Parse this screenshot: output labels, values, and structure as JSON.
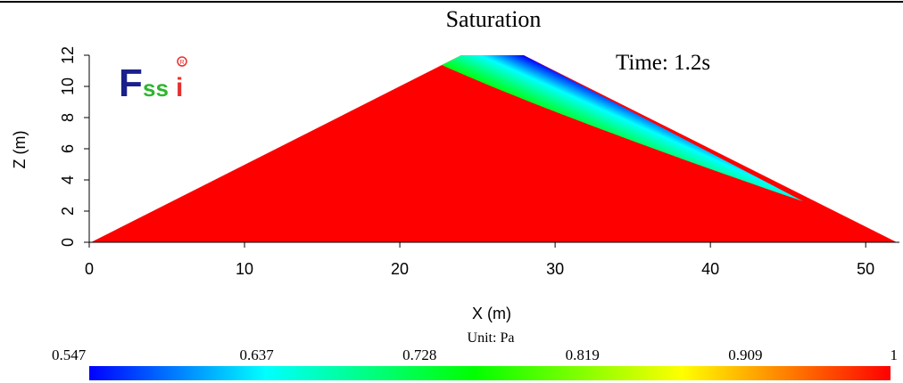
{
  "chart_data": {
    "type": "heatmap",
    "title": "Saturation",
    "annotation": "Time: 1.2s",
    "logo_text": "Fssi",
    "xlabel": "X (m)",
    "ylabel": "Z (m)",
    "xlim": [
      0,
      52
    ],
    "ylim": [
      0,
      12
    ],
    "x_ticks": [
      "0",
      "10",
      "20",
      "30",
      "40",
      "50"
    ],
    "y_ticks": [
      "0",
      "2",
      "4",
      "6",
      "8",
      "10",
      "12"
    ],
    "domain_polygon": [
      [
        0,
        0
      ],
      [
        24,
        12
      ],
      [
        28,
        12
      ],
      [
        52,
        0
      ]
    ],
    "field_range": [
      0.547,
      1
    ],
    "field_min_location": [
      28,
      12
    ],
    "colorbar": {
      "unit": "Unit:  Pa",
      "ticks": [
        "0.547",
        "0.637",
        "0.728",
        "0.819",
        "0.909",
        "1"
      ],
      "colors": [
        "#0000ff",
        "#00ffff",
        "#00ff00",
        "#ffff00",
        "#ff0000"
      ]
    }
  }
}
